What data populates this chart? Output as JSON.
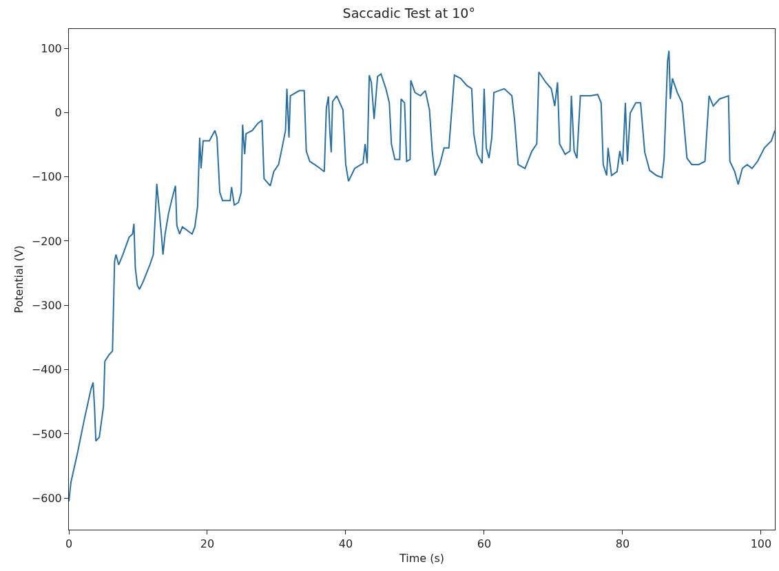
{
  "chart_data": {
    "type": "line",
    "title": "Saccadic Test at 10°",
    "xlabel": "Time (s)",
    "ylabel": "Potential (V)",
    "xlim": [
      0,
      102
    ],
    "ylim": [
      -649,
      130
    ],
    "xticks": [
      0,
      20,
      40,
      60,
      80,
      100
    ],
    "yticks": [
      -600,
      -500,
      -400,
      -300,
      -200,
      -100,
      0,
      100
    ],
    "grid": false,
    "marker": "none",
    "line_style": "solid",
    "series": [
      {
        "color": "#2a6f9f",
        "x": [
          0,
          0.3,
          1.2,
          2.2,
          3.2,
          3.5,
          3.7,
          3.9,
          4.4,
          5.0,
          5.2,
          5.8,
          6.3,
          6.6,
          6.8,
          7.2,
          7.8,
          8.7,
          9.2,
          9.4,
          9.6,
          9.9,
          10.2,
          10.7,
          11.7,
          12.2,
          12.5,
          12.7,
          13.0,
          13.4,
          13.6,
          13.9,
          14.4,
          15.0,
          15.4,
          15.6,
          16.0,
          16.4,
          17.8,
          18.2,
          18.6,
          18.9,
          19.1,
          19.4,
          20.3,
          21.1,
          21.4,
          21.8,
          22.2,
          23.3,
          23.5,
          23.9,
          24.5,
          24.9,
          25.1,
          25.4,
          25.6,
          26.5,
          27.3,
          27.9,
          28.2,
          28.6,
          29.1,
          29.6,
          30.3,
          30.8,
          31.3,
          31.5,
          31.8,
          32.0,
          33.3,
          34.0,
          34.3,
          34.8,
          35.5,
          36.3,
          36.9,
          37.2,
          37.5,
          37.7,
          37.9,
          38.1,
          38.7,
          39.6,
          40.0,
          40.4,
          41.3,
          42.5,
          42.8,
          43.1,
          43.4,
          43.7,
          44.1,
          44.6,
          45.1,
          45.8,
          46.3,
          46.6,
          47.1,
          47.8,
          48.0,
          48.5,
          48.8,
          49.3,
          49.4,
          50.0,
          50.8,
          51.5,
          52.1,
          52.5,
          52.9,
          53.6,
          54.2,
          54.9,
          55.4,
          55.7,
          56.6,
          57.5,
          58.2,
          58.5,
          59.0,
          59.7,
          60.0,
          60.3,
          60.7,
          61.1,
          61.4,
          62.9,
          64.0,
          64.4,
          64.9,
          65.9,
          66.9,
          67.6,
          67.9,
          68.9,
          69.7,
          70.2,
          70.6,
          70.9,
          71.7,
          72.4,
          72.6,
          73.0,
          73.4,
          73.9,
          75.4,
          76.4,
          76.9,
          77.2,
          77.7,
          77.9,
          78.4,
          79.2,
          79.6,
          80.0,
          80.4,
          80.7,
          81.1,
          81.9,
          82.6,
          83.2,
          83.9,
          84.9,
          85.7,
          86.0,
          86.5,
          86.7,
          86.9,
          87.2,
          87.9,
          88.6,
          89.3,
          90.0,
          91.0,
          91.9,
          92.5,
          93.1,
          94.0,
          95.3,
          95.5,
          96.2,
          96.7,
          97.3,
          98.0,
          98.7,
          99.5,
          100.5,
          101.5,
          102
        ],
        "values": [
          -605,
          -575,
          -532,
          -479,
          -430,
          -420,
          -457,
          -511,
          -505,
          -457,
          -387,
          -377,
          -371,
          -232,
          -221,
          -237,
          -221,
          -194,
          -189,
          -173,
          -242,
          -269,
          -275,
          -264,
          -237,
          -221,
          -157,
          -111,
          -146,
          -194,
          -221,
          -189,
          -157,
          -130,
          -114,
          -176,
          -189,
          -178,
          -189,
          -178,
          -146,
          -39,
          -87,
          -44,
          -44,
          -28,
          -39,
          -124,
          -137,
          -137,
          -116,
          -144,
          -140,
          -124,
          -19,
          -65,
          -33,
          -28,
          -17,
          -12,
          -103,
          -108,
          -114,
          -92,
          -81,
          -55,
          -28,
          37,
          -39,
          26,
          34,
          34,
          -60,
          -76,
          -81,
          -87,
          -92,
          7,
          25,
          -28,
          -62,
          17,
          26,
          4,
          -81,
          -107,
          -87,
          -79,
          -49,
          -79,
          58,
          47,
          -10,
          56,
          60,
          37,
          15,
          -49,
          -73,
          -73,
          21,
          15,
          -76,
          -73,
          50,
          31,
          26,
          34,
          4,
          -60,
          -98,
          -81,
          -55,
          -55,
          15,
          58,
          53,
          42,
          37,
          -33,
          -65,
          -79,
          37,
          -55,
          -71,
          -39,
          31,
          37,
          26,
          -12,
          -81,
          -87,
          -60,
          -49,
          63,
          47,
          37,
          10,
          47,
          -49,
          -65,
          -60,
          26,
          -60,
          -71,
          26,
          26,
          28,
          15,
          -81,
          -98,
          -55,
          -98,
          -92,
          -60,
          -81,
          15,
          -76,
          -1,
          15,
          15,
          -62,
          -90,
          -98,
          -101,
          -71,
          80,
          96,
          21,
          53,
          31,
          15,
          -71,
          -81,
          -81,
          -76,
          26,
          10,
          21,
          26,
          -76,
          -92,
          -112,
          -87,
          -81,
          -87,
          -76,
          -55,
          -44,
          -28
        ]
      }
    ]
  }
}
